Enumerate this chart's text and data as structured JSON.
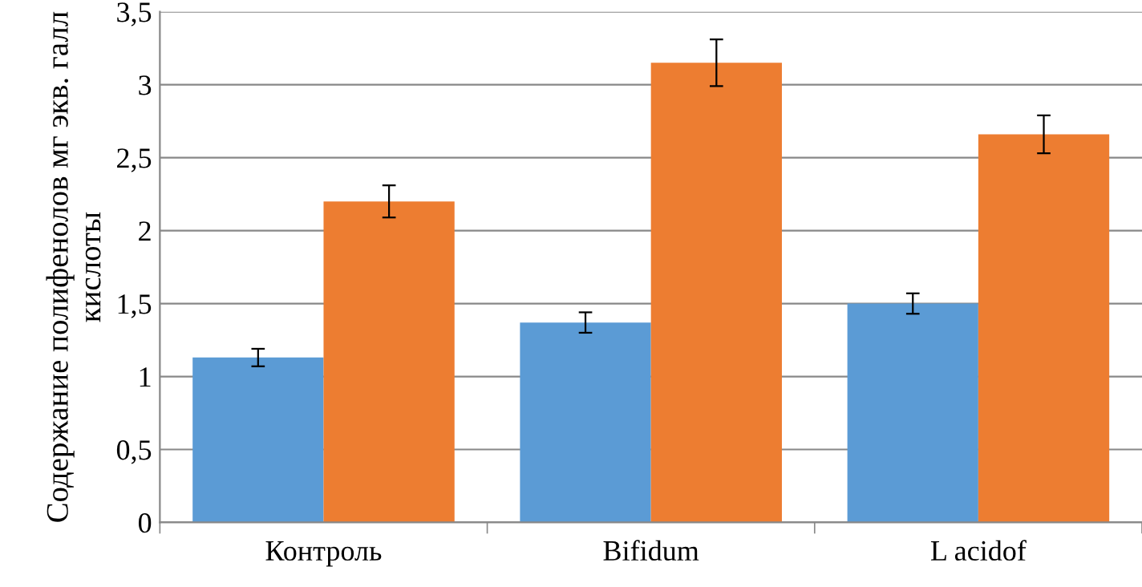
{
  "chart_data": {
    "type": "bar",
    "ylabel": "Содержание полифенолов мг экв. галл кислоты",
    "categories": [
      "Контроль",
      "Bifidum",
      "L acidof"
    ],
    "series": [
      {
        "color": "#5b9bd5",
        "values": [
          1.13,
          1.37,
          1.5
        ],
        "errors": [
          0.06,
          0.07,
          0.07
        ]
      },
      {
        "color": "#ed7d31",
        "values": [
          2.2,
          3.15,
          2.66
        ],
        "errors": [
          0.11,
          0.16,
          0.13
        ]
      }
    ],
    "ylim": [
      0,
      3.5
    ],
    "yticks": [
      {
        "value": 0,
        "label": "0"
      },
      {
        "value": 0.5,
        "label": "0,5"
      },
      {
        "value": 1,
        "label": "1"
      },
      {
        "value": 1.5,
        "label": "1,5"
      },
      {
        "value": 2,
        "label": "2"
      },
      {
        "value": 2.5,
        "label": "2,5"
      },
      {
        "value": 3,
        "label": "3"
      },
      {
        "value": 3.5,
        "label": "3,5"
      }
    ],
    "grid": "y"
  }
}
